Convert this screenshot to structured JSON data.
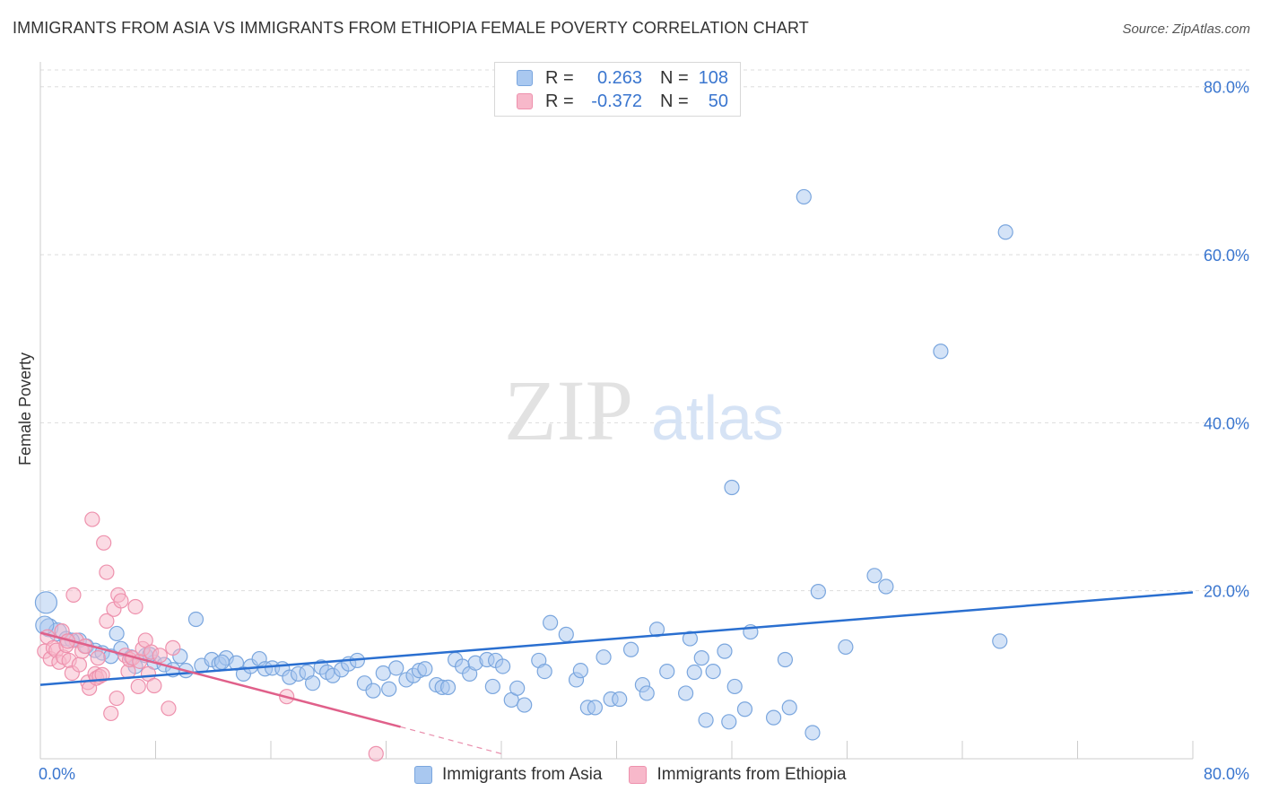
{
  "title": "IMMIGRANTS FROM ASIA VS IMMIGRANTS FROM ETHIOPIA FEMALE POVERTY CORRELATION CHART",
  "source": "Source: ZipAtlas.com",
  "watermark": {
    "zip": "ZIP",
    "atlas": "atlas"
  },
  "colors": {
    "asia_fill": "#a9c8f0",
    "asia_stroke": "#7aa6de",
    "asia_line": "#2a6fd0",
    "eth_fill": "#f7b8ca",
    "eth_stroke": "#ee91ad",
    "eth_line": "#e0608a",
    "axis_label": "#3a76cf",
    "grid": "#dddddd"
  },
  "legend": {
    "rows": [
      {
        "r_label": "R =",
        "r_value": "0.263",
        "n_label": "N =",
        "n_value": "108"
      },
      {
        "r_label": "R =",
        "r_value": "-0.372",
        "n_label": "N =",
        "n_value": "50"
      }
    ]
  },
  "bottom_legend": [
    "Immigrants from Asia",
    "Immigrants from Ethiopia"
  ],
  "chart_data": {
    "type": "scatter",
    "title": "IMMIGRANTS FROM ASIA VS IMMIGRANTS FROM ETHIOPIA FEMALE POVERTY CORRELATION CHART",
    "xlabel": "",
    "ylabel": "Female Poverty",
    "xlim": [
      0,
      80
    ],
    "ylim": [
      0,
      82
    ],
    "x_tick_labels": [
      "0.0%",
      "80.0%"
    ],
    "y_tick_values": [
      20,
      40,
      60,
      80
    ],
    "y_tick_labels": [
      "20.0%",
      "40.0%",
      "60.0%",
      "80.0%"
    ],
    "grid": true,
    "legend_position": "top-center",
    "series": [
      {
        "name": "Immigrants from Asia",
        "r": 0.263,
        "n": 108,
        "trend": {
          "x": [
            0,
            80
          ],
          "y": [
            8.8,
            19.8
          ]
        },
        "points": [
          [
            0.4,
            18.6
          ],
          [
            0.6,
            15.6
          ],
          [
            1.2,
            15.1
          ],
          [
            1.8,
            14.3
          ],
          [
            2.7,
            14.1
          ],
          [
            3.2,
            13.4
          ],
          [
            3.8,
            12.9
          ],
          [
            4.3,
            12.6
          ],
          [
            4.9,
            12.2
          ],
          [
            5.3,
            14.9
          ],
          [
            5.6,
            13.1
          ],
          [
            6.3,
            12.1
          ],
          [
            6.6,
            11.0
          ],
          [
            7.3,
            12.3
          ],
          [
            7.9,
            11.5
          ],
          [
            8.6,
            11.2
          ],
          [
            9.2,
            10.6
          ],
          [
            9.7,
            12.2
          ],
          [
            10.1,
            10.5
          ],
          [
            10.8,
            16.6
          ],
          [
            11.2,
            11.1
          ],
          [
            11.9,
            11.8
          ],
          [
            12.4,
            11.3
          ],
          [
            12.9,
            12.0
          ],
          [
            13.6,
            11.4
          ],
          [
            14.1,
            10.1
          ],
          [
            14.6,
            11.0
          ],
          [
            15.2,
            11.9
          ],
          [
            15.6,
            10.7
          ],
          [
            16.1,
            10.8
          ],
          [
            16.8,
            10.7
          ],
          [
            17.3,
            9.7
          ],
          [
            17.9,
            10.1
          ],
          [
            18.5,
            10.3
          ],
          [
            18.9,
            9.0
          ],
          [
            19.5,
            10.9
          ],
          [
            19.9,
            10.3
          ],
          [
            20.3,
            9.9
          ],
          [
            20.9,
            10.6
          ],
          [
            21.4,
            11.3
          ],
          [
            22.0,
            11.7
          ],
          [
            22.5,
            9.0
          ],
          [
            23.1,
            8.1
          ],
          [
            23.8,
            10.2
          ],
          [
            24.2,
            8.3
          ],
          [
            24.7,
            10.8
          ],
          [
            25.4,
            9.4
          ],
          [
            25.9,
            9.9
          ],
          [
            26.3,
            10.5
          ],
          [
            26.7,
            10.7
          ],
          [
            27.5,
            8.8
          ],
          [
            27.9,
            8.5
          ],
          [
            28.3,
            8.5
          ],
          [
            28.8,
            11.8
          ],
          [
            29.3,
            11.0
          ],
          [
            29.8,
            10.1
          ],
          [
            30.2,
            11.4
          ],
          [
            31.0,
            11.8
          ],
          [
            31.4,
            8.6
          ],
          [
            31.6,
            11.7
          ],
          [
            32.1,
            11.0
          ],
          [
            32.7,
            7.0
          ],
          [
            33.1,
            8.4
          ],
          [
            33.6,
            6.4
          ],
          [
            34.6,
            11.7
          ],
          [
            35.0,
            10.4
          ],
          [
            35.4,
            16.2
          ],
          [
            36.5,
            14.8
          ],
          [
            37.2,
            9.4
          ],
          [
            37.5,
            10.5
          ],
          [
            38.0,
            6.1
          ],
          [
            38.5,
            6.1
          ],
          [
            39.1,
            12.1
          ],
          [
            39.6,
            7.1
          ],
          [
            40.2,
            7.1
          ],
          [
            41.0,
            13.0
          ],
          [
            41.8,
            8.8
          ],
          [
            42.1,
            7.8
          ],
          [
            42.8,
            15.4
          ],
          [
            43.5,
            10.4
          ],
          [
            44.8,
            7.8
          ],
          [
            45.1,
            14.3
          ],
          [
            45.4,
            10.3
          ],
          [
            45.9,
            12.0
          ],
          [
            46.2,
            4.6
          ],
          [
            46.7,
            10.4
          ],
          [
            47.5,
            12.8
          ],
          [
            47.8,
            4.4
          ],
          [
            48.2,
            8.6
          ],
          [
            48.9,
            5.9
          ],
          [
            49.3,
            15.1
          ],
          [
            50.9,
            4.9
          ],
          [
            51.7,
            11.8
          ],
          [
            52.0,
            6.1
          ],
          [
            53.0,
            66.9
          ],
          [
            53.6,
            3.1
          ],
          [
            54.0,
            19.9
          ],
          [
            55.9,
            13.3
          ],
          [
            57.9,
            21.8
          ],
          [
            58.7,
            20.5
          ],
          [
            62.5,
            48.5
          ],
          [
            66.6,
            14.0
          ],
          [
            67.0,
            62.7
          ],
          [
            48.0,
            32.3
          ],
          [
            0.3,
            15.9
          ],
          [
            2.2,
            14.1
          ],
          [
            7.6,
            12.4
          ],
          [
            12.6,
            11.5
          ]
        ]
      },
      {
        "name": "Immigrants from Ethiopia",
        "r": -0.372,
        "n": 50,
        "trend": {
          "x": [
            0,
            25
          ],
          "y": [
            15.0,
            3.8
          ]
        },
        "trend_dashed": {
          "x": [
            25,
            32
          ],
          "y": [
            3.8,
            0.6
          ]
        },
        "points": [
          [
            0.3,
            12.8
          ],
          [
            0.5,
            14.5
          ],
          [
            0.7,
            11.9
          ],
          [
            0.9,
            13.2
          ],
          [
            1.1,
            12.9
          ],
          [
            1.3,
            11.5
          ],
          [
            1.5,
            15.2
          ],
          [
            1.6,
            12.1
          ],
          [
            1.8,
            13.5
          ],
          [
            2.0,
            11.7
          ],
          [
            2.2,
            10.2
          ],
          [
            2.3,
            19.5
          ],
          [
            2.5,
            14.1
          ],
          [
            2.7,
            11.2
          ],
          [
            2.9,
            12.8
          ],
          [
            3.1,
            13.4
          ],
          [
            3.3,
            9.1
          ],
          [
            3.4,
            8.4
          ],
          [
            3.6,
            28.5
          ],
          [
            3.8,
            10.1
          ],
          [
            3.9,
            9.6
          ],
          [
            4.1,
            9.8
          ],
          [
            4.3,
            10.0
          ],
          [
            4.4,
            25.7
          ],
          [
            4.6,
            22.2
          ],
          [
            4.6,
            16.4
          ],
          [
            4.9,
            5.4
          ],
          [
            5.1,
            17.8
          ],
          [
            5.3,
            7.2
          ],
          [
            5.4,
            19.5
          ],
          [
            5.6,
            18.8
          ],
          [
            5.9,
            12.3
          ],
          [
            6.1,
            10.4
          ],
          [
            6.2,
            11.8
          ],
          [
            6.4,
            12.0
          ],
          [
            6.6,
            18.1
          ],
          [
            6.8,
            8.6
          ],
          [
            6.9,
            11.6
          ],
          [
            7.1,
            13.1
          ],
          [
            7.3,
            14.1
          ],
          [
            7.5,
            10.1
          ],
          [
            7.7,
            12.7
          ],
          [
            7.9,
            8.7
          ],
          [
            8.3,
            12.3
          ],
          [
            8.9,
            6.0
          ],
          [
            9.2,
            13.2
          ],
          [
            17.1,
            7.4
          ],
          [
            23.3,
            0.6
          ],
          [
            1.9,
            14.0
          ],
          [
            4.0,
            12.0
          ]
        ]
      }
    ]
  }
}
